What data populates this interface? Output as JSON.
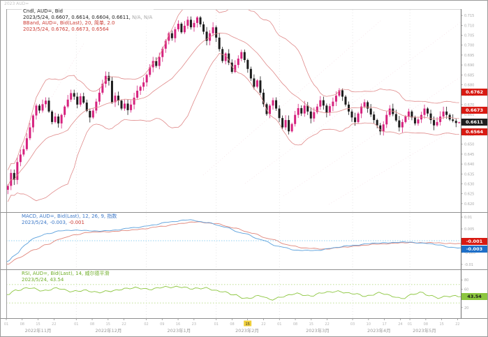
{
  "window": {
    "top_note": "2023 AUD="
  },
  "main_legend": {
    "line1": "Cndl, AUD=, Bid",
    "line2": "2023/5/24, 0.6607, 0.6614, 0.6604, 0.6611, ",
    "line2_suffix": "N/A, N/A",
    "line3": "BBand, AUD=, Bid(Last), 20, 简单, 2.0",
    "line4": "2023/5/24, 0.6762, 0.6673, 0.6564"
  },
  "macd_legend": {
    "line1": "MACD, AUD=, Bid(Last), 12, 26, 9, 指数",
    "line2_prefix": "2023/5/24, -0.003, ",
    "line2_value": "-0.001"
  },
  "rsi_legend": {
    "line1": "RSI, AUD=, Bid(Last), 14, 威尔德平滑",
    "line2": "2023/5/24, 43.54"
  },
  "badges": {
    "bb_upper": "0.6762",
    "bb_mid": "0.6673",
    "price": "0.6611",
    "bb_lower": "0.6564",
    "macd_signal": "-0.001",
    "macd_main": "-0.003",
    "rsi": "43.54"
  },
  "colors": {
    "up": "#d6227e",
    "down": "#1c1c1c",
    "band": "#e08a8a",
    "macd": "#5aa0dc",
    "signal": "#e0857a",
    "zero": "#92d2f2",
    "rsi": "#8cc63f",
    "rsi_guide": "#b5dc82",
    "grid": "#dcdcdc",
    "axis_text": "#a8a8a8",
    "watermark": "#eab6c6"
  },
  "chart_data": {
    "type": "candlestick",
    "title": "Cndl, AUD=, Bid",
    "instrument": "AUD=",
    "last_date": "2023/5/24",
    "ohlc_last": {
      "open": 0.6607,
      "high": 0.6614,
      "low": 0.6604,
      "close": 0.6611
    },
    "price_panel": {
      "ylim": [
        0.6175,
        0.7175
      ],
      "price_ticks": {
        "min": 0.62,
        "max": 0.715,
        "step": 0.005
      },
      "bollinger": {
        "period": 20,
        "mode": "简单",
        "width": 2.0,
        "upper": 0.6762,
        "middle": 0.6673,
        "lower": 0.6564
      },
      "closes": [
        0.629,
        0.6355,
        0.632,
        0.641,
        0.6448,
        0.6475,
        0.653,
        0.6585,
        0.6645,
        0.6695,
        0.667,
        0.6702,
        0.672,
        0.6665,
        0.6612,
        0.664,
        0.6605,
        0.6648,
        0.669,
        0.6725,
        0.6758,
        0.674,
        0.67,
        0.6742,
        0.671,
        0.6668,
        0.6635,
        0.667,
        0.6715,
        0.676,
        0.6805,
        0.6845,
        0.682,
        0.6712,
        0.6745,
        0.672,
        0.668,
        0.6705,
        0.6672,
        0.67,
        0.6735,
        0.677,
        0.679,
        0.6812,
        0.685,
        0.6888,
        0.692,
        0.6895,
        0.694,
        0.6982,
        0.7022,
        0.706,
        0.7035,
        0.708,
        0.7108,
        0.7065,
        0.7098,
        0.7128,
        0.709,
        0.7112,
        0.714,
        0.7105,
        0.7068,
        0.7022,
        0.706,
        0.709,
        0.7038,
        0.698,
        0.692,
        0.6958,
        0.6912,
        0.6865,
        0.69,
        0.6932,
        0.6965,
        0.6925,
        0.688,
        0.6832,
        0.679,
        0.6822,
        0.676,
        0.6702,
        0.6652,
        0.6695,
        0.6722,
        0.668,
        0.6632,
        0.6585,
        0.6622,
        0.6565,
        0.6602,
        0.6648,
        0.6682,
        0.6655,
        0.6695,
        0.6665,
        0.663,
        0.6662,
        0.669,
        0.6722,
        0.6695,
        0.666,
        0.6692,
        0.6715,
        0.6745,
        0.6772,
        0.674,
        0.67,
        0.6665,
        0.6635,
        0.6612,
        0.6655,
        0.669,
        0.6712,
        0.668,
        0.665,
        0.6622,
        0.6595,
        0.6565,
        0.66,
        0.6648,
        0.668,
        0.6652,
        0.662,
        0.6585,
        0.6612,
        0.664,
        0.6665,
        0.6635,
        0.6605,
        0.6625,
        0.6648,
        0.668,
        0.6655,
        0.6622,
        0.6595,
        0.6612,
        0.664,
        0.6665,
        0.6648,
        0.6625,
        0.6618,
        0.6607,
        0.6611
      ]
    },
    "macd_panel": {
      "ylim": [
        -0.0115,
        0.0115
      ],
      "params": [
        12,
        26,
        9
      ],
      "macd_value": -0.003,
      "signal_value": -0.001,
      "ticks": [
        0.01,
        0.005,
        0,
        -0.005,
        -0.01
      ],
      "macd": [
        [
          0,
          -0.009
        ],
        [
          0.02,
          -0.006
        ],
        [
          0.04,
          -0.002
        ],
        [
          0.06,
          0.001
        ],
        [
          0.09,
          0.003
        ],
        [
          0.12,
          0.0042
        ],
        [
          0.16,
          0.0045
        ],
        [
          0.2,
          0.004
        ],
        [
          0.24,
          0.0045
        ],
        [
          0.28,
          0.0055
        ],
        [
          0.32,
          0.0065
        ],
        [
          0.36,
          0.008
        ],
        [
          0.4,
          0.0088
        ],
        [
          0.44,
          0.0078
        ],
        [
          0.48,
          0.0058
        ],
        [
          0.52,
          0.0032
        ],
        [
          0.56,
          0.0005
        ],
        [
          0.6,
          -0.0025
        ],
        [
          0.64,
          -0.004
        ],
        [
          0.68,
          -0.0042
        ],
        [
          0.72,
          -0.003
        ],
        [
          0.76,
          -0.002
        ],
        [
          0.8,
          -0.0012
        ],
        [
          0.84,
          -0.0008
        ],
        [
          0.88,
          -0.0006
        ],
        [
          0.92,
          -0.001
        ],
        [
          0.95,
          -0.0018
        ],
        [
          0.98,
          -0.0028
        ],
        [
          1,
          -0.003
        ]
      ],
      "signal": [
        [
          0,
          -0.01
        ],
        [
          0.03,
          -0.007
        ],
        [
          0.06,
          -0.004
        ],
        [
          0.09,
          -0.0015
        ],
        [
          0.12,
          0.0008
        ],
        [
          0.15,
          0.0025
        ],
        [
          0.18,
          0.0035
        ],
        [
          0.22,
          0.0038
        ],
        [
          0.26,
          0.0042
        ],
        [
          0.3,
          0.005
        ],
        [
          0.34,
          0.006
        ],
        [
          0.38,
          0.0072
        ],
        [
          0.42,
          0.008
        ],
        [
          0.46,
          0.0072
        ],
        [
          0.5,
          0.0055
        ],
        [
          0.54,
          0.0032
        ],
        [
          0.58,
          0.0008
        ],
        [
          0.62,
          -0.0018
        ],
        [
          0.66,
          -0.0032
        ],
        [
          0.7,
          -0.0035
        ],
        [
          0.74,
          -0.0028
        ],
        [
          0.78,
          -0.002
        ],
        [
          0.82,
          -0.0014
        ],
        [
          0.86,
          -0.001
        ],
        [
          0.9,
          -0.0008
        ],
        [
          0.94,
          -0.0009
        ],
        [
          0.97,
          -0.0011
        ],
        [
          1,
          -0.0012
        ]
      ]
    },
    "rsi_panel": {
      "ylim": [
        0,
        100
      ],
      "period": 14,
      "value": 43.54,
      "guides": [
        30,
        70
      ],
      "ticks": [
        80,
        60,
        40,
        20
      ],
      "rsi": [
        [
          0,
          48
        ],
        [
          0.02,
          58
        ],
        [
          0.05,
          62
        ],
        [
          0.08,
          57
        ],
        [
          0.11,
          62
        ],
        [
          0.14,
          55
        ],
        [
          0.17,
          58
        ],
        [
          0.2,
          52
        ],
        [
          0.23,
          57
        ],
        [
          0.26,
          60
        ],
        [
          0.29,
          63
        ],
        [
          0.32,
          60
        ],
        [
          0.35,
          64
        ],
        [
          0.38,
          66
        ],
        [
          0.41,
          60
        ],
        [
          0.44,
          63
        ],
        [
          0.47,
          55
        ],
        [
          0.5,
          48
        ],
        [
          0.53,
          40
        ],
        [
          0.56,
          45
        ],
        [
          0.58,
          38
        ],
        [
          0.61,
          44
        ],
        [
          0.64,
          50
        ],
        [
          0.67,
          46
        ],
        [
          0.7,
          52
        ],
        [
          0.73,
          56
        ],
        [
          0.76,
          50
        ],
        [
          0.79,
          45
        ],
        [
          0.82,
          52
        ],
        [
          0.85,
          44
        ],
        [
          0.87,
          40
        ],
        [
          0.89,
          48
        ],
        [
          0.91,
          52
        ],
        [
          0.93,
          46
        ],
        [
          0.95,
          42
        ],
        [
          0.97,
          45
        ],
        [
          1,
          43.54
        ]
      ]
    },
    "x_axis": {
      "grid_f": [
        0.154,
        0.308,
        0.462,
        0.601,
        0.762,
        0.888
      ],
      "day_ticks": [
        {
          "f": 0.0,
          "d": "01"
        },
        {
          "f": 0.035,
          "d": "08"
        },
        {
          "f": 0.07,
          "d": "15"
        },
        {
          "f": 0.105,
          "d": "22"
        },
        {
          "f": 0.154,
          "d": "01"
        },
        {
          "f": 0.189,
          "d": "08"
        },
        {
          "f": 0.224,
          "d": "15"
        },
        {
          "f": 0.259,
          "d": "22"
        },
        {
          "f": 0.308,
          "d": "02"
        },
        {
          "f": 0.343,
          "d": "09"
        },
        {
          "f": 0.378,
          "d": "16"
        },
        {
          "f": 0.413,
          "d": "23"
        },
        {
          "f": 0.462,
          "d": "01"
        },
        {
          "f": 0.497,
          "d": "08"
        },
        {
          "f": 0.531,
          "d": "15",
          "hl": true
        },
        {
          "f": 0.566,
          "d": "22"
        },
        {
          "f": 0.601,
          "d": "01"
        },
        {
          "f": 0.636,
          "d": "08"
        },
        {
          "f": 0.671,
          "d": "15"
        },
        {
          "f": 0.706,
          "d": "22"
        },
        {
          "f": 0.762,
          "d": "03"
        },
        {
          "f": 0.797,
          "d": "10"
        },
        {
          "f": 0.832,
          "d": "17"
        },
        {
          "f": 0.867,
          "d": "24"
        },
        {
          "f": 0.888,
          "d": "01"
        },
        {
          "f": 0.923,
          "d": "08"
        },
        {
          "f": 0.958,
          "d": "15"
        },
        {
          "f": 0.993,
          "d": "22"
        }
      ],
      "month_labels": [
        {
          "f": 0.07,
          "label": "2022年11月"
        },
        {
          "f": 0.225,
          "label": "2022年12月"
        },
        {
          "f": 0.38,
          "label": "2023年1月"
        },
        {
          "f": 0.53,
          "label": "2023年2月"
        },
        {
          "f": 0.685,
          "label": "2023年3月"
        },
        {
          "f": 0.82,
          "label": "2023年4月"
        },
        {
          "f": 0.92,
          "label": "2023年5月"
        }
      ]
    }
  }
}
